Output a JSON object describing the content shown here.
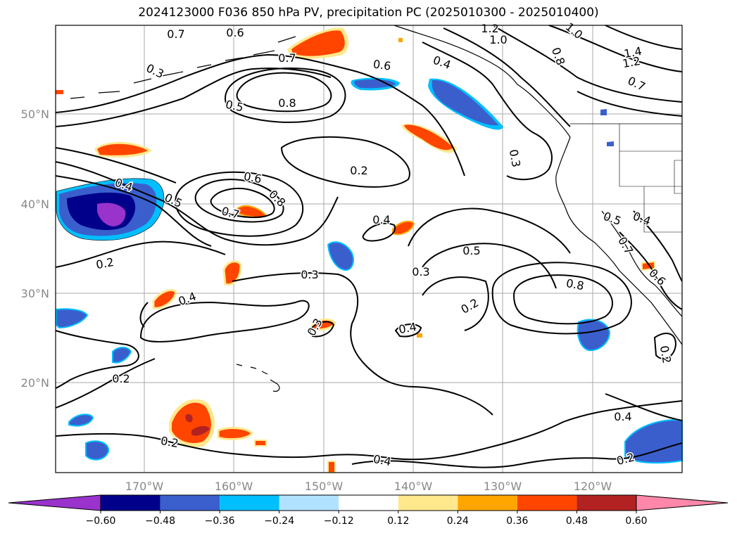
{
  "title": "2024123000 F036 850 hPa PV, precipitation PC (2025010300 - 2025010400)",
  "lon_ticks": [
    "170°W",
    "160°W",
    "150°W",
    "140°W",
    "130°W",
    "120°W"
  ],
  "lat_ticks": [
    "50°N",
    "40°N",
    "30°N",
    "20°N"
  ],
  "colorbar": {
    "colors": [
      "#9933cc",
      "#00008b",
      "#3a5fcd",
      "#00bfff",
      "#b0e2ff",
      "#ffffff",
      "#ffe88c",
      "#ffa500",
      "#ff4500",
      "#b22222",
      "#ff88aa"
    ],
    "tick_labels": [
      "−0.60",
      "−0.48",
      "−0.36",
      "−0.24",
      "−0.12",
      "0.12",
      "0.24",
      "0.36",
      "0.48",
      "0.60"
    ]
  },
  "contour_labels": [
    "0.7",
    "0.6",
    "0.7",
    "0.3",
    "0.5",
    "0.8",
    "0.6",
    "0.4",
    "1.2",
    "1.0",
    "1.0",
    "0.8",
    "1.4",
    "1.2",
    "0.7",
    "0.2",
    "0.3",
    "0.6",
    "0.8",
    "0.4",
    "0.5",
    "0.7",
    "0.4",
    "0.5",
    "0.4",
    "0.7",
    "0.2",
    "0.3",
    "0.3",
    "0.5",
    "0.8",
    "0.2",
    "0.4",
    "0.6",
    "0.4",
    "0.3",
    "0.4",
    "0.2",
    "0.2",
    "0.4",
    "0.2",
    "0.2"
  ]
}
